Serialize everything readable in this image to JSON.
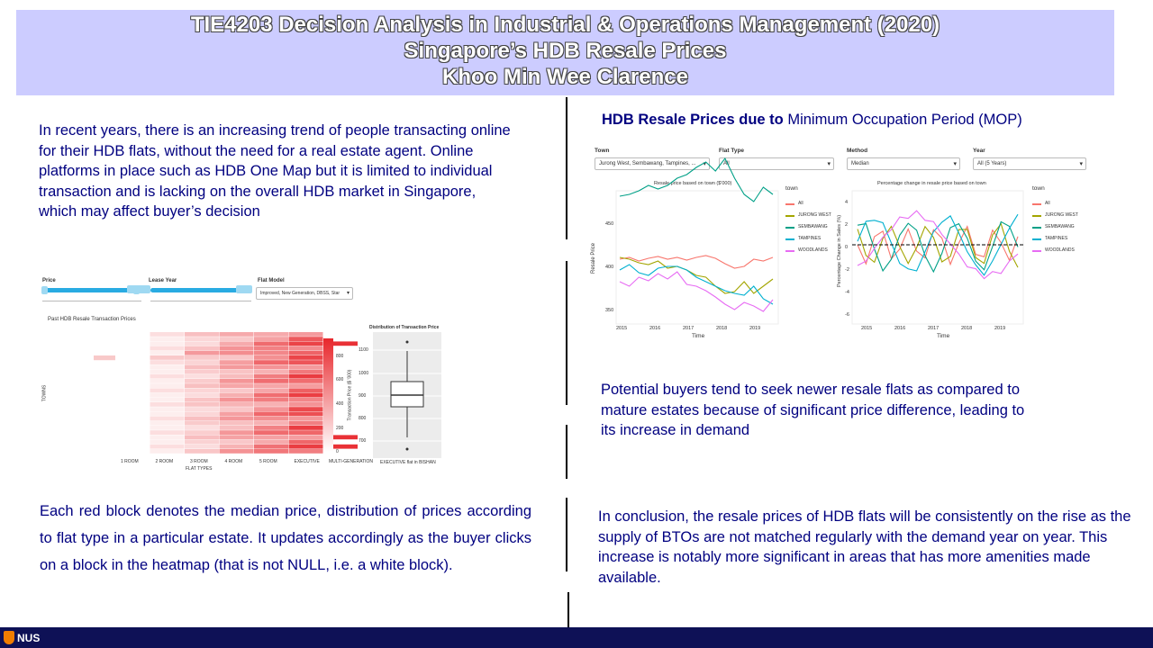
{
  "title": {
    "line1": "TIE4203 Decision Analysis in Industrial & Operations Management (2020)",
    "line2": "Singapore’s HDB Resale Prices",
    "line3": "Khoo Min Wee Clarence"
  },
  "left": {
    "intro": "In recent years, there is an increasing trend of people transacting online for their HDB flats, without the need for a real estate agent. Online platforms in place such as HDB One Map but it is limited to individual transaction and is lacking on the overall HDB market in Singapore, which may affect buyer’s decision",
    "explanation": "Each red block denotes the median price, distribution of prices according to flat type in a particular estate. It updates accordingly as the buyer clicks on a block in the heatmap (that is not NULL, i.e. a white block)."
  },
  "heatmap_panel": {
    "price_label": "Price",
    "lease_label": "Lease Year",
    "model_label": "Flat Model",
    "model_value": "Improved, New Generation, DBSS, Star",
    "heatmap_title": "Past HDB Resale Transaction Prices",
    "box_title": "Distribution of Transaction Price",
    "box_ylabel": "Transaction Price ($ '000)",
    "box_xlabel": "EXECUTIVE flat in BISHAN",
    "y_axis_label": "TOWNS",
    "x_axis_label": "FLAT TYPES",
    "flat_types": [
      "1 ROOM",
      "2 ROOM",
      "3 ROOM",
      "4 ROOM",
      "5 ROOM",
      "EXECUTIVE",
      "MULTI-GENERATION"
    ],
    "legend_ticks": [
      "800",
      "600",
      "400",
      "200",
      "0"
    ],
    "box_ticks": [
      "1100",
      "1000",
      "900",
      "800",
      "700"
    ]
  },
  "right": {
    "heading_bold": "HDB Resale Prices due to",
    "heading_rest": " Minimum Occupation Period (MOP)",
    "filters": [
      {
        "label": "Town",
        "value": "Jurong West, Sembawang, Tampines, ..."
      },
      {
        "label": "Flat Type",
        "value": "All"
      },
      {
        "label": "Method",
        "value": "Median"
      },
      {
        "label": "Year",
        "value": "All (5 Years)"
      }
    ],
    "chart1_title": "Resale price based on town ($'000)",
    "chart1_ylabel": "Resale Price",
    "chart2_title": "Percentage change in resale price based on town",
    "chart2_ylabel": "Percentage Change in Sales (%)",
    "xlabel": "Time",
    "legend_title": "town",
    "legend": [
      "All",
      "JURONG WEST",
      "SEMBAWANG",
      "TAMPINES",
      "WOODLANDS"
    ],
    "legend_colors": [
      "#f8766d",
      "#a3a500",
      "#00a087",
      "#00b0d0",
      "#e76bf3"
    ],
    "years": [
      "2015",
      "2016",
      "2017",
      "2018",
      "2019"
    ],
    "chart1_yticks": [
      "450",
      "400",
      "350"
    ],
    "chart2_yticks": [
      "4",
      "2",
      "0",
      "-2",
      "-4",
      "-6"
    ],
    "observation": "Potential buyers tend to seek newer resale flats as compared to mature estates because of significant price difference, leading to its increase in demand",
    "conclusion": "In conclusion, the resale prices of HDB flats will be consistently on the rise as the supply of BTOs are not matched regularly with the demand year on year. This increase is notably more significant in areas that has more amenities made available."
  },
  "footer": {
    "logo_text": "NUS"
  }
}
